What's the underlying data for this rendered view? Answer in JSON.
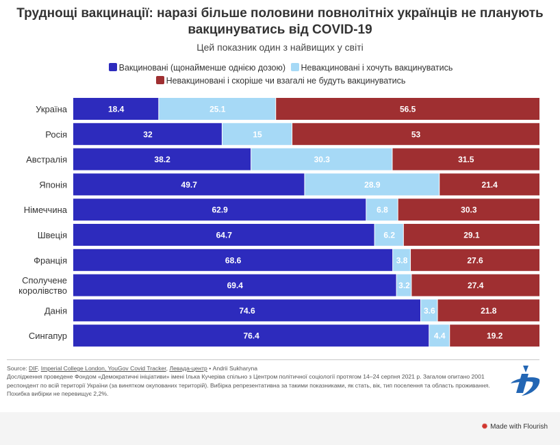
{
  "title": "Труднощі вакцинації: наразі більше половини повнолітніх українців не планують вакцинуватись від COVID-19",
  "subtitle": "Цей показник один з найвищих у світі",
  "colors": {
    "vaccinated": "#2d2bbd",
    "want": "#a6d9f6",
    "wont": "#9f2f31"
  },
  "legend": [
    {
      "label": "Вакциновані (щонайменше однією дозою)",
      "color": "#2d2bbd"
    },
    {
      "label": "Невакциновані і хочуть вакцинуватись",
      "color": "#a6d9f6"
    },
    {
      "label": "Невакциновані і скоріше чи взагалі не будуть вакцинуватись",
      "color": "#9f2f31"
    }
  ],
  "chart_data": {
    "type": "bar",
    "orientation": "horizontal",
    "stacked": true,
    "xlim": [
      0,
      100
    ],
    "categories": [
      "Україна",
      "Росія",
      "Австралія",
      "Японія",
      "Німеччина",
      "Швеція",
      "Франція",
      "Сполучене королівство",
      "Данія",
      "Сингапур"
    ],
    "category_lines": [
      [
        "Україна"
      ],
      [
        "Росія"
      ],
      [
        "Австралія"
      ],
      [
        "Японія"
      ],
      [
        "Німеччина"
      ],
      [
        "Швеція"
      ],
      [
        "Франція"
      ],
      [
        "Сполучене",
        "королівство"
      ],
      [
        "Данія"
      ],
      [
        "Сингапур"
      ]
    ],
    "series": [
      {
        "name": "Вакциновані (щонайменше однією дозою)",
        "values": [
          18.4,
          32,
          38.2,
          49.7,
          62.9,
          64.7,
          68.6,
          69.4,
          74.6,
          76.4
        ]
      },
      {
        "name": "Невакциновані і хочуть вакцинуватись",
        "values": [
          25.1,
          15,
          30.3,
          28.9,
          6.8,
          6.2,
          3.8,
          3.2,
          3.6,
          4.4
        ]
      },
      {
        "name": "Невакциновані і скоріше чи взагалі не будуть вакцинуватись",
        "values": [
          56.5,
          53,
          31.5,
          21.4,
          30.3,
          29.1,
          27.6,
          27.4,
          21.8,
          19.2
        ]
      }
    ]
  },
  "footer": {
    "source_label": "Source:",
    "sources": [
      "DIF",
      "Imperial College London, YouGov Covid Tracker",
      "Левада-центр"
    ],
    "author": "• Andrii Sukharyna",
    "note": "Дослідження проведене Фондом «Демократичні ініціативи» імені Ілька Кучеріва спільно з Центром політичної соціології протягом 14–24 серпня 2021 р. Загалом опитано 2001 респондент по всій території України (за винятком окупованих територій). Вибірка репрезентативна за такими показниками, як стать, вік, тип поселення та область проживання. Похибка вибірки не перевищує 2,2%."
  },
  "made_with": "Made with Flourish"
}
